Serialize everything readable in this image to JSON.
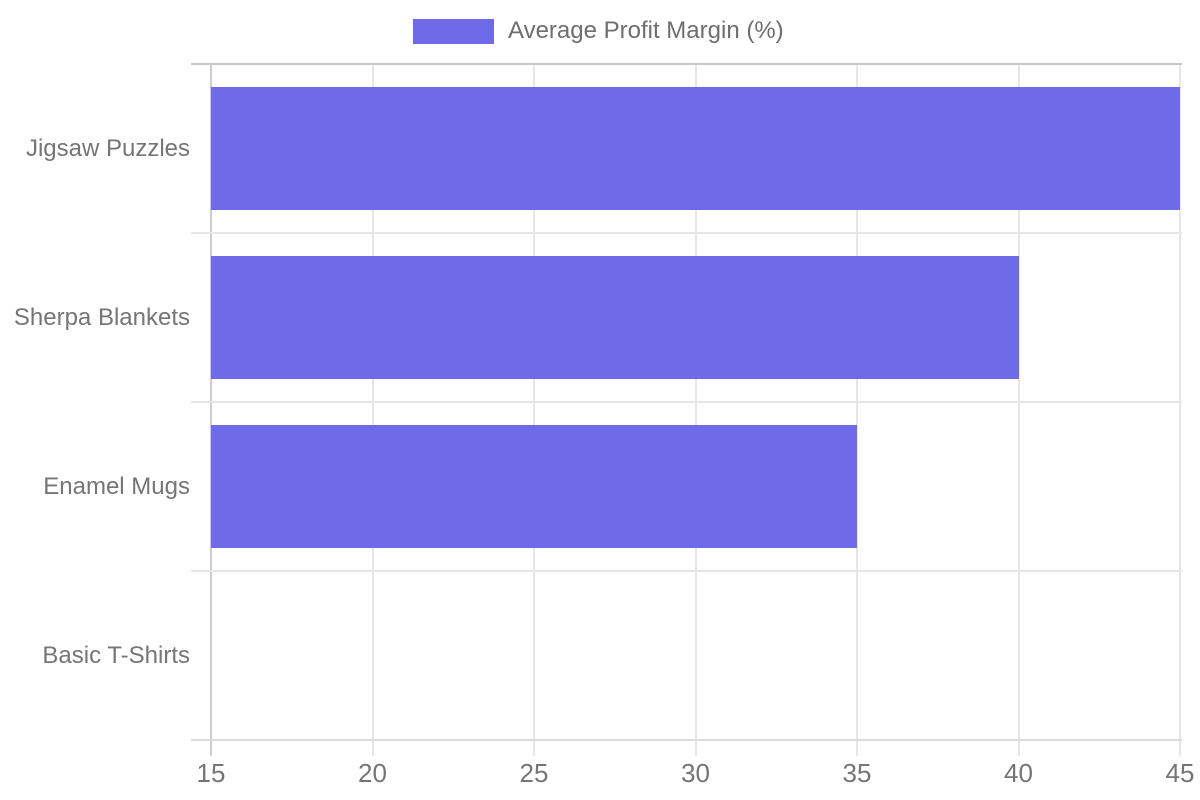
{
  "chart_data": {
    "type": "bar",
    "orientation": "horizontal",
    "legend": "Average Profit Margin (%)",
    "legend_position": "top",
    "categories": [
      "Jigsaw Puzzles",
      "Sherpa Blankets",
      "Enamel Mugs",
      "Basic T-Shirts"
    ],
    "series": [
      {
        "name": "Average Profit Margin (%)",
        "values": [
          45,
          40,
          35,
          15
        ]
      }
    ],
    "xlabel": "",
    "ylabel": "",
    "xlim": [
      15,
      45
    ],
    "x_ticks": [
      15,
      20,
      25,
      30,
      35,
      40,
      45
    ],
    "grid": true,
    "colors": {
      "bar": "#6e6ae8",
      "gridline": "#e6e6e6",
      "axis_baseline": "#cdcdcd",
      "axis_top": "#c8c8c8",
      "axis_bottom": "#dcdcdc",
      "label_text": "#757575",
      "legend_text": "#6e6e6e",
      "background": "#ffffff"
    }
  }
}
